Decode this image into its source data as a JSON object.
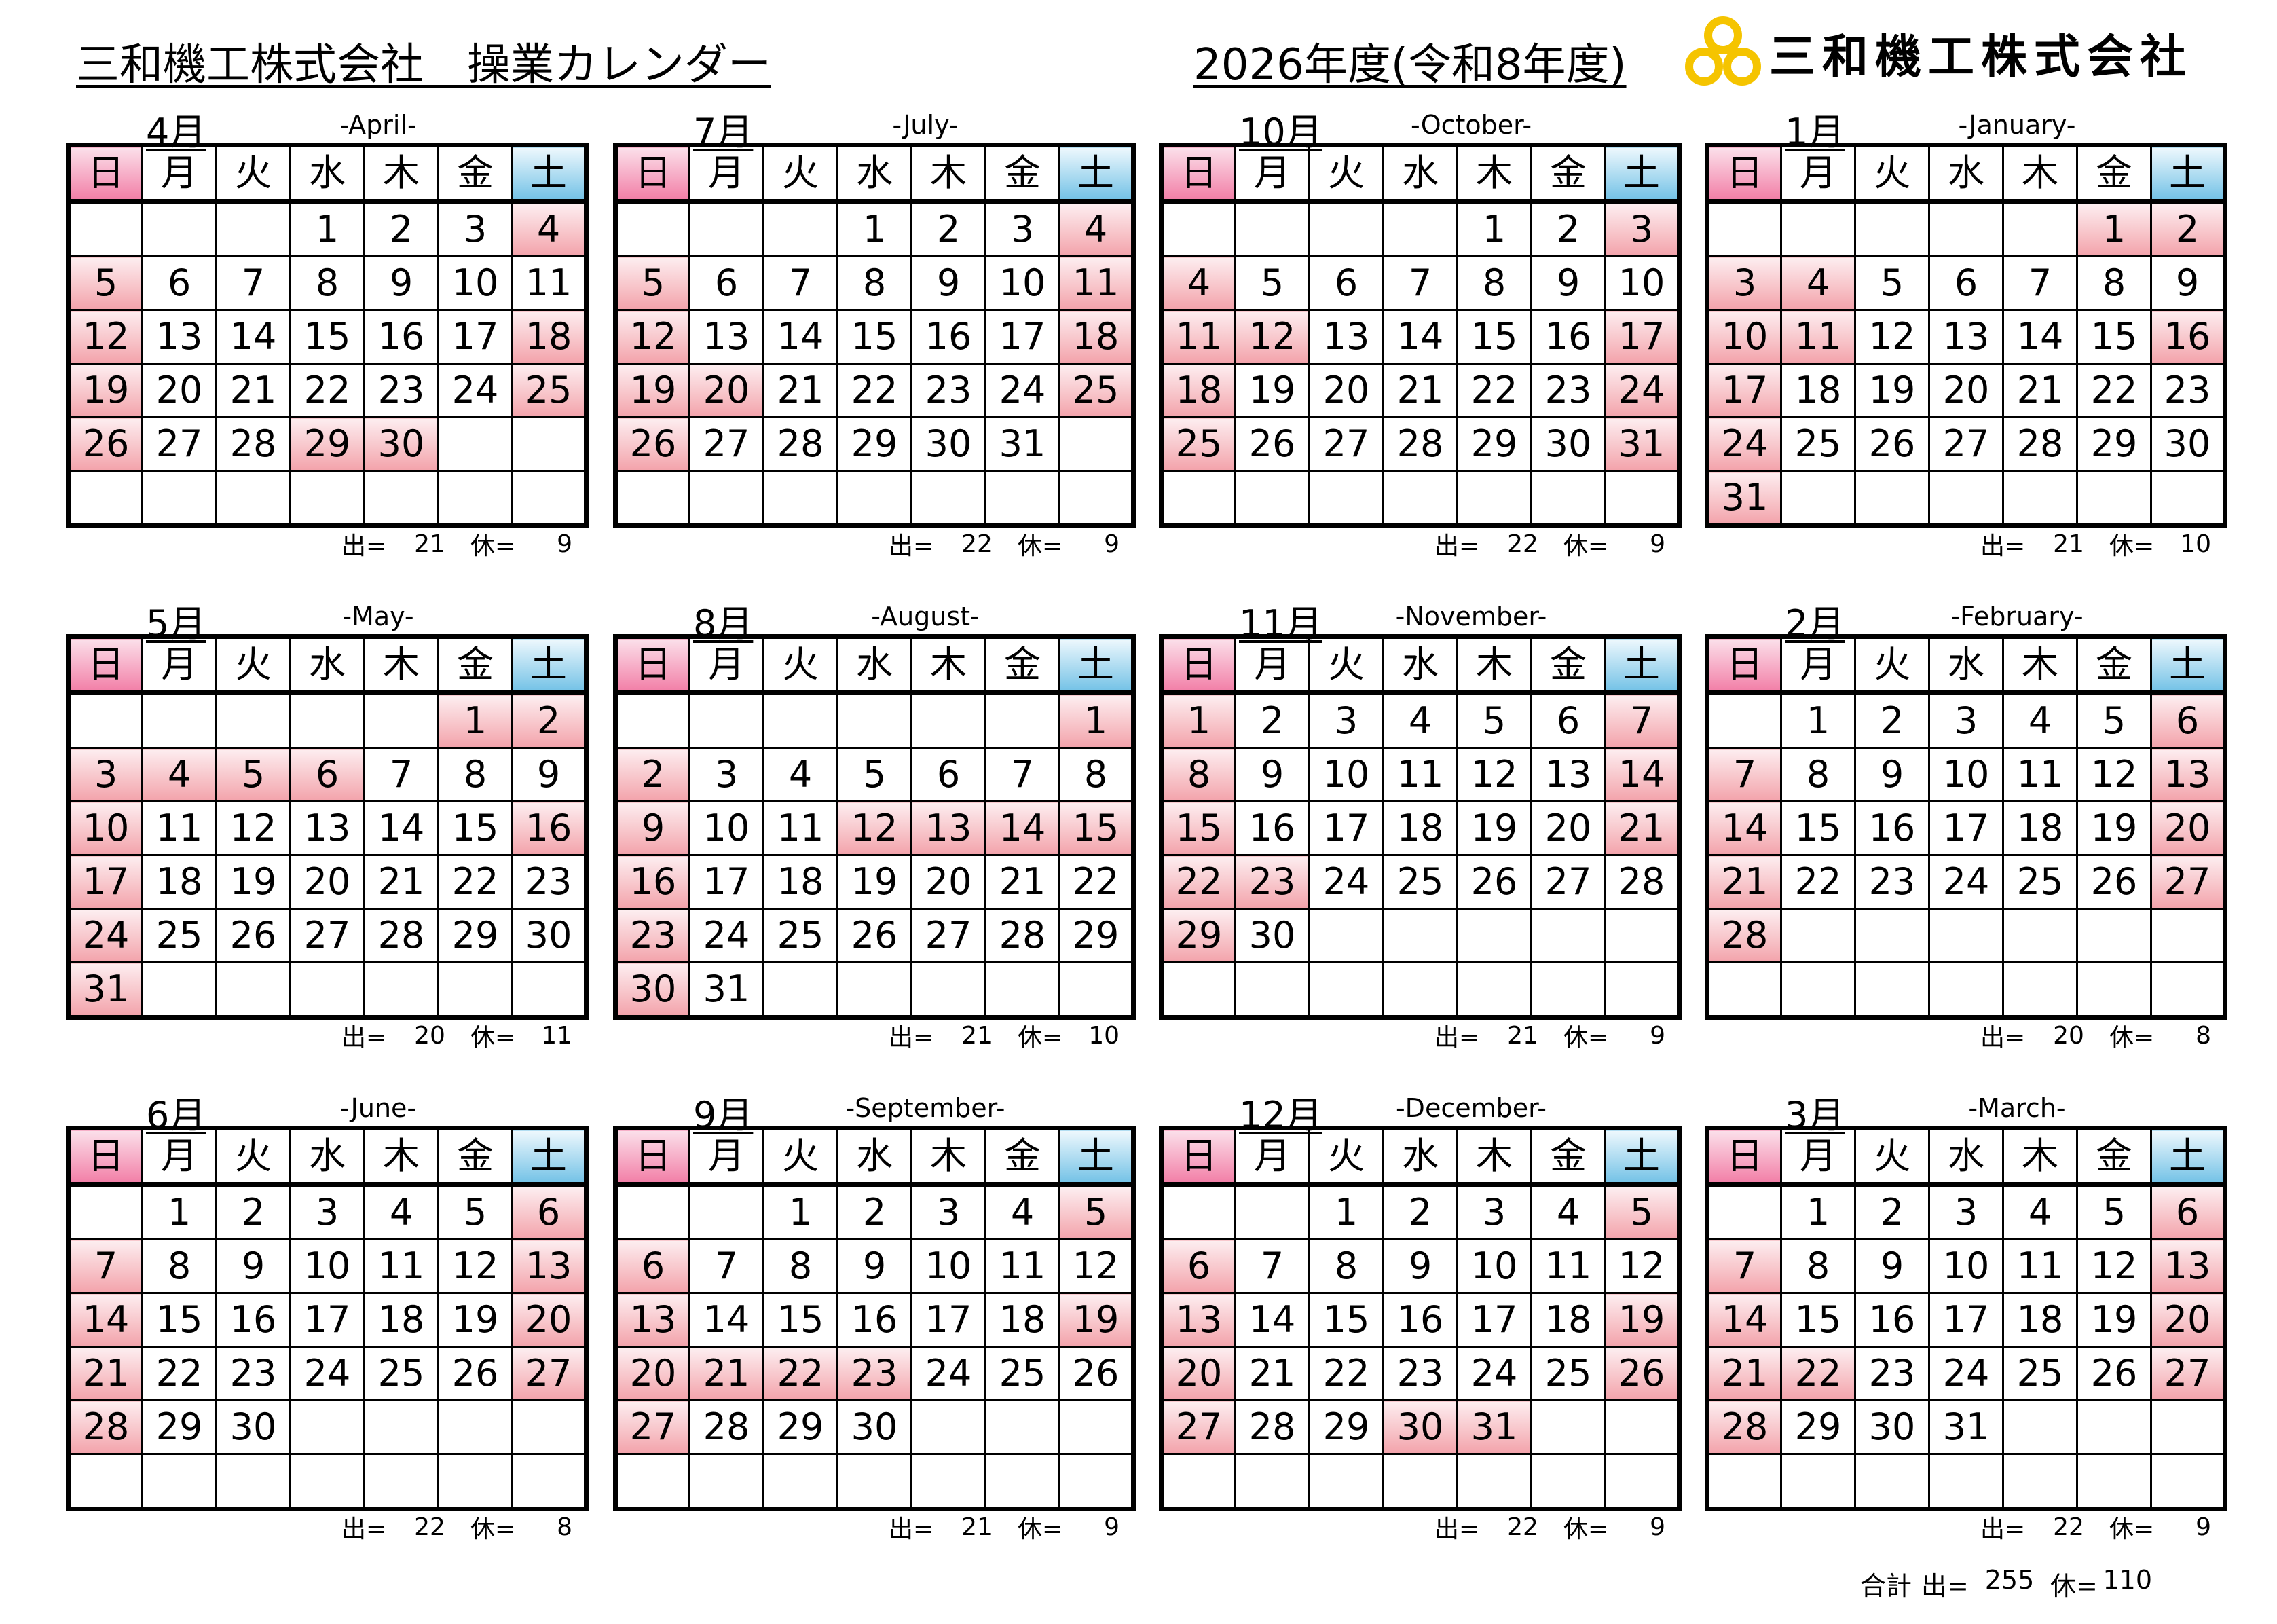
{
  "header": {
    "title": "三和機工株式会社　操業カレンダー",
    "fiscal_year": "2026年度(令和8年度)",
    "logo_text": "三和機工株式会社",
    "logo_color": "#f5c400"
  },
  "weekdays": [
    "日",
    "月",
    "火",
    "水",
    "木",
    "金",
    "土"
  ],
  "labels": {
    "work": "出=",
    "rest": "休=",
    "total": "合計"
  },
  "colors": {
    "holiday": "#f3a3ab",
    "sunday_header": "#f27fa7",
    "saturday_header": "#74c2e6"
  },
  "months": [
    {
      "jp": "4月",
      "en": "-April-",
      "first_weekday": 3,
      "days": 30,
      "holidays": [
        4,
        5,
        12,
        18,
        19,
        25,
        26,
        29,
        30
      ],
      "work": 21,
      "rest": 9
    },
    {
      "jp": "7月",
      "en": "-July-",
      "first_weekday": 3,
      "days": 31,
      "holidays": [
        4,
        5,
        11,
        12,
        18,
        19,
        20,
        25,
        26
      ],
      "work": 22,
      "rest": 9
    },
    {
      "jp": "10月",
      "en": "-October-",
      "first_weekday": 4,
      "days": 31,
      "holidays": [
        3,
        4,
        11,
        12,
        17,
        18,
        24,
        25,
        31
      ],
      "work": 22,
      "rest": 9
    },
    {
      "jp": "1月",
      "en": "-January-",
      "first_weekday": 5,
      "days": 31,
      "holidays": [
        1,
        2,
        3,
        4,
        10,
        11,
        16,
        17,
        24,
        31
      ],
      "work": 21,
      "rest": 10
    },
    {
      "jp": "5月",
      "en": "-May-",
      "first_weekday": 5,
      "days": 31,
      "holidays": [
        1,
        2,
        3,
        4,
        5,
        6,
        10,
        16,
        17,
        24,
        31
      ],
      "work": 20,
      "rest": 11
    },
    {
      "jp": "8月",
      "en": "-August-",
      "first_weekday": 6,
      "days": 31,
      "holidays": [
        1,
        2,
        9,
        12,
        13,
        14,
        15,
        16,
        23,
        30
      ],
      "work": 21,
      "rest": 10
    },
    {
      "jp": "11月",
      "en": "-November-",
      "first_weekday": 0,
      "days": 30,
      "holidays": [
        1,
        7,
        8,
        14,
        15,
        21,
        22,
        23,
        29
      ],
      "work": 21,
      "rest": 9
    },
    {
      "jp": "2月",
      "en": "-February-",
      "first_weekday": 1,
      "days": 28,
      "holidays": [
        6,
        7,
        13,
        14,
        20,
        21,
        27,
        28
      ],
      "work": 20,
      "rest": 8
    },
    {
      "jp": "6月",
      "en": "-June-",
      "first_weekday": 1,
      "days": 30,
      "holidays": [
        6,
        7,
        13,
        14,
        20,
        21,
        27,
        28
      ],
      "work": 22,
      "rest": 8
    },
    {
      "jp": "9月",
      "en": "-September-",
      "first_weekday": 2,
      "days": 30,
      "holidays": [
        5,
        6,
        13,
        19,
        20,
        21,
        22,
        23,
        27
      ],
      "work": 21,
      "rest": 9
    },
    {
      "jp": "12月",
      "en": "-December-",
      "first_weekday": 2,
      "days": 31,
      "holidays": [
        5,
        6,
        13,
        19,
        20,
        26,
        27,
        30,
        31
      ],
      "work": 22,
      "rest": 9
    },
    {
      "jp": "3月",
      "en": "-March-",
      "first_weekday": 1,
      "days": 31,
      "holidays": [
        6,
        7,
        13,
        14,
        20,
        21,
        22,
        27,
        28
      ],
      "work": 22,
      "rest": 9
    }
  ],
  "total": {
    "work": 255,
    "rest": 110
  }
}
